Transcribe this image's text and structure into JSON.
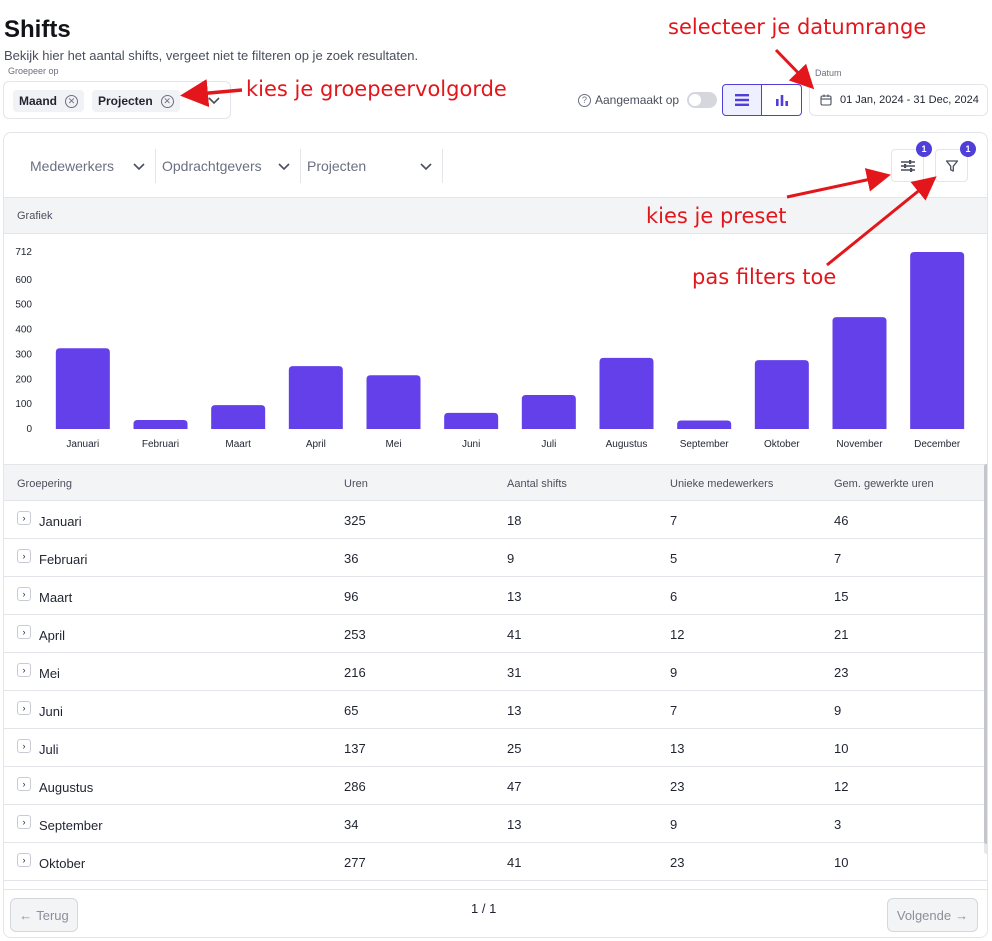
{
  "header": {
    "title": "Shifts",
    "subtitle": "Bekijk hier het aantal shifts, vergeet niet te filteren op je zoek resultaten."
  },
  "group_by": {
    "label": "Groepeer op",
    "chips": [
      "Maand",
      "Projecten"
    ]
  },
  "toggle": {
    "label": "Aangemaakt op",
    "on": false
  },
  "date": {
    "label": "Datum",
    "value": "01 Jan, 2024 - 31 Dec, 2024"
  },
  "filters": {
    "dropdowns": [
      "Medewerkers",
      "Opdrachtgevers",
      "Projecten"
    ],
    "preset_badge": "1",
    "filter_badge": "1"
  },
  "section": {
    "chart_title": "Grafiek"
  },
  "chart_data": {
    "type": "bar",
    "categories": [
      "Januari",
      "Februari",
      "Maart",
      "April",
      "Mei",
      "Juni",
      "Juli",
      "Augustus",
      "September",
      "Oktober",
      "November",
      "December"
    ],
    "values": [
      325,
      36,
      96,
      253,
      216,
      65,
      137,
      286,
      34,
      277,
      450,
      712
    ],
    "yticks": [
      0,
      100,
      200,
      300,
      400,
      500,
      600,
      712
    ],
    "ylim": [
      0,
      712
    ],
    "color": "#6440eb",
    "grid": false
  },
  "table": {
    "columns": [
      "Groepering",
      "Uren",
      "Aantal shifts",
      "Unieke medewerkers",
      "Gem. gewerkte uren"
    ],
    "rows": [
      [
        "Januari",
        "325",
        "18",
        "7",
        "46"
      ],
      [
        "Februari",
        "36",
        "9",
        "5",
        "7"
      ],
      [
        "Maart",
        "96",
        "13",
        "6",
        "15"
      ],
      [
        "April",
        "253",
        "41",
        "12",
        "21"
      ],
      [
        "Mei",
        "216",
        "31",
        "9",
        "23"
      ],
      [
        "Juni",
        "65",
        "13",
        "7",
        "9"
      ],
      [
        "Juli",
        "137",
        "25",
        "13",
        "10"
      ],
      [
        "Augustus",
        "286",
        "47",
        "23",
        "12"
      ],
      [
        "September",
        "34",
        "13",
        "9",
        "3"
      ],
      [
        "Oktober",
        "277",
        "41",
        "23",
        "10"
      ]
    ]
  },
  "pagination": {
    "prev_label": "Terug",
    "next_label": "Volgende",
    "page": "1 / 1"
  },
  "annotations": {
    "group_note": "kies je groepeervolgorde",
    "date_note": "selecteer je datumrange",
    "preset_note": "kies je preset",
    "filter_note": "pas filters toe",
    "color": "#e3161b"
  }
}
